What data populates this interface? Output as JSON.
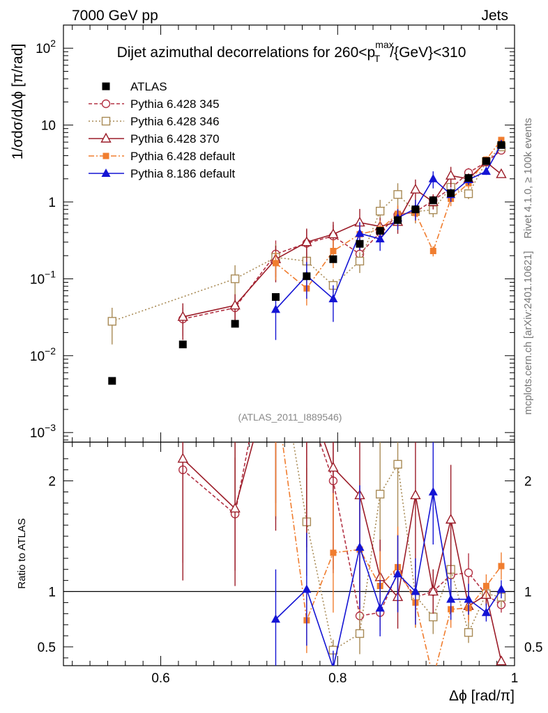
{
  "header": {
    "energy_label": "7000 GeV pp",
    "category_label": "Jets",
    "rivet_label": "Rivet 4.1.0, ≥ 100k events",
    "mcplots_label": "mcplots.cern.ch [arXiv:2401.10621]",
    "analysis_label": "(ATLAS_2011_I889546)"
  },
  "chart_data": {
    "type": "line",
    "title": "Dijet azimuthal decorrelations for 260<p_T^max/{GeV}<310",
    "title_parts": {
      "prefix": "Dijet azimuthal decorrelations for 260<p",
      "sup": "max",
      "sub": "T",
      "suffix": "/{GeV}<310"
    },
    "xlabel": "Δϕ [rad/π]",
    "ylabel": "1/σdσ/dΔϕ [π/rad]",
    "ratio_ylabel": "Ratio to ATLAS",
    "xlim": [
      0.49,
      1.0
    ],
    "ylim": [
      0.00075,
      200
    ],
    "yscale": "log",
    "ratio_ylim": [
      0.33,
      2.35
    ],
    "x_ticks": [
      {
        "v": 0.6,
        "label": "0.6"
      },
      {
        "v": 0.8,
        "label": "0.8"
      },
      {
        "v": 1.0,
        "label": "1"
      }
    ],
    "y_ticks": [
      {
        "v": 0.001,
        "label": "10",
        "exp": "−3"
      },
      {
        "v": 0.01,
        "label": "10",
        "exp": "−2"
      },
      {
        "v": 0.1,
        "label": "10",
        "exp": "−1"
      },
      {
        "v": 1,
        "label": "1",
        "exp": ""
      },
      {
        "v": 10,
        "label": "10",
        "exp": ""
      },
      {
        "v": 100,
        "label": "10",
        "exp": "2"
      }
    ],
    "ratio_ticks": [
      {
        "v": 0.5,
        "label": "0.5"
      },
      {
        "v": 1,
        "label": "1"
      },
      {
        "v": 2,
        "label": "2"
      }
    ],
    "legend_position": "top-left",
    "series": [
      {
        "name": "ATLAS",
        "color": "#000000",
        "style": "data",
        "marker": "square",
        "x": [
          0.545,
          0.625,
          0.684,
          0.73,
          0.765,
          0.795,
          0.825,
          0.848,
          0.868,
          0.888,
          0.908,
          0.928,
          0.948,
          0.968,
          0.985
        ],
        "y": [
          0.0047,
          0.014,
          0.026,
          0.058,
          0.108,
          0.18,
          0.285,
          0.42,
          0.58,
          0.8,
          1.05,
          1.3,
          2.05,
          3.4,
          5.5
        ],
        "ratio": [
          1,
          1,
          1,
          1,
          1,
          1,
          1,
          1,
          1,
          1,
          1,
          1,
          1,
          1,
          1
        ]
      },
      {
        "name": "Pythia 6.428 345",
        "color": "#b33244",
        "style": "dashed",
        "marker": "circle",
        "x": [
          0.625,
          0.684,
          0.73,
          0.765,
          0.795,
          0.825,
          0.848,
          0.868,
          0.888,
          0.908,
          0.928,
          0.948,
          0.968,
          0.985
        ],
        "y": [
          0.03,
          0.042,
          0.21,
          0.29,
          0.36,
          0.21,
          0.4,
          0.68,
          0.74,
          1.05,
          1.5,
          2.4,
          3.3,
          4.7
        ],
        "ratio": [
          2.1,
          1.7,
          3.6,
          2.7,
          2.0,
          0.78,
          0.81,
          1.17,
          0.95,
          1.0,
          1.15,
          1.17,
          0.97,
          0.88
        ],
        "err": [
          0.4,
          0.3,
          0.5,
          0.5,
          0.4,
          0.2,
          0.2,
          0.3,
          0.2,
          0.2,
          0.2,
          0.15,
          0.1,
          0.08
        ]
      },
      {
        "name": "Pythia 6.428 346",
        "color": "#a88a55",
        "style": "dotted",
        "marker": "square-open",
        "x": [
          0.545,
          0.684,
          0.73,
          0.765,
          0.795,
          0.825,
          0.848,
          0.868,
          0.888,
          0.908,
          0.928,
          0.948,
          0.968,
          0.985
        ],
        "y": [
          0.028,
          0.1,
          0.19,
          0.17,
          0.082,
          0.17,
          0.76,
          1.25,
          0.75,
          0.79,
          1.55,
          1.28,
          3.35,
          5.2
        ],
        "ratio": [
          6,
          3.8,
          3.3,
          1.63,
          0.47,
          0.62,
          1.88,
          2.15,
          0.96,
          0.77,
          1.2,
          0.63,
          0.98,
          0.95
        ],
        "err": [
          0.5,
          0.5,
          0.5,
          0.3,
          0.2,
          0.3,
          0.4,
          0.4,
          0.3,
          0.2,
          0.25,
          0.15,
          0.1,
          0.1
        ]
      },
      {
        "name": "Pythia 6.428 370",
        "color": "#9b1c28",
        "style": "solid",
        "marker": "triangle-open",
        "x": [
          0.625,
          0.684,
          0.73,
          0.765,
          0.795,
          0.825,
          0.848,
          0.868,
          0.888,
          0.908,
          0.928,
          0.948,
          0.968,
          0.985
        ],
        "y": [
          0.032,
          0.045,
          0.18,
          0.3,
          0.38,
          0.54,
          0.48,
          0.55,
          1.45,
          1.0,
          2.2,
          2.0,
          3.3,
          2.3
        ],
        "ratio": [
          2.2,
          1.75,
          3.1,
          2.8,
          2.12,
          1.87,
          1.13,
          0.95,
          1.87,
          1.0,
          1.65,
          0.87,
          0.97,
          0.37
        ],
        "err": [
          0.5,
          0.4,
          0.5,
          0.5,
          0.45,
          0.5,
          0.3,
          0.3,
          0.35,
          0.2,
          0.3,
          0.15,
          0.1,
          0.08
        ]
      },
      {
        "name": "Pythia 6.428 default",
        "color": "#f07d2f",
        "style": "dashdot",
        "marker": "square-filled",
        "x": [
          0.73,
          0.765,
          0.795,
          0.825,
          0.848,
          0.868,
          0.888,
          0.908,
          0.928,
          0.948,
          0.968,
          0.985
        ],
        "y": [
          0.16,
          0.075,
          0.23,
          0.38,
          0.44,
          0.7,
          0.72,
          0.23,
          1.1,
          1.75,
          3.55,
          6.4
        ],
        "ratio": [
          2.8,
          0.74,
          1.35,
          1.38,
          1.05,
          1.22,
          0.9,
          0.22,
          0.84,
          0.85,
          1.05,
          1.23
        ],
        "err": [
          0.4,
          0.4,
          0.4,
          0.4,
          0.3,
          0.3,
          0.25,
          0.15,
          0.2,
          0.15,
          0.1,
          0.1
        ]
      },
      {
        "name": "Pythia 8.186 default",
        "color": "#1414d4",
        "style": "solid",
        "marker": "triangle-filled",
        "x": [
          0.73,
          0.765,
          0.795,
          0.825,
          0.848,
          0.868,
          0.888,
          0.908,
          0.928,
          0.948,
          0.968,
          0.985
        ],
        "y": [
          0.04,
          0.11,
          0.055,
          0.39,
          0.33,
          0.62,
          0.82,
          2.0,
          1.25,
          1.95,
          2.5,
          5.6
        ],
        "ratio": [
          0.75,
          1.02,
          0.31,
          1.4,
          0.85,
          1.16,
          1.0,
          1.9,
          0.93,
          0.93,
          0.81,
          1.02
        ],
        "err": [
          0.6,
          0.5,
          0.5,
          0.4,
          0.3,
          0.3,
          0.3,
          0.25,
          0.2,
          0.15,
          0.1,
          0.08
        ]
      }
    ]
  }
}
